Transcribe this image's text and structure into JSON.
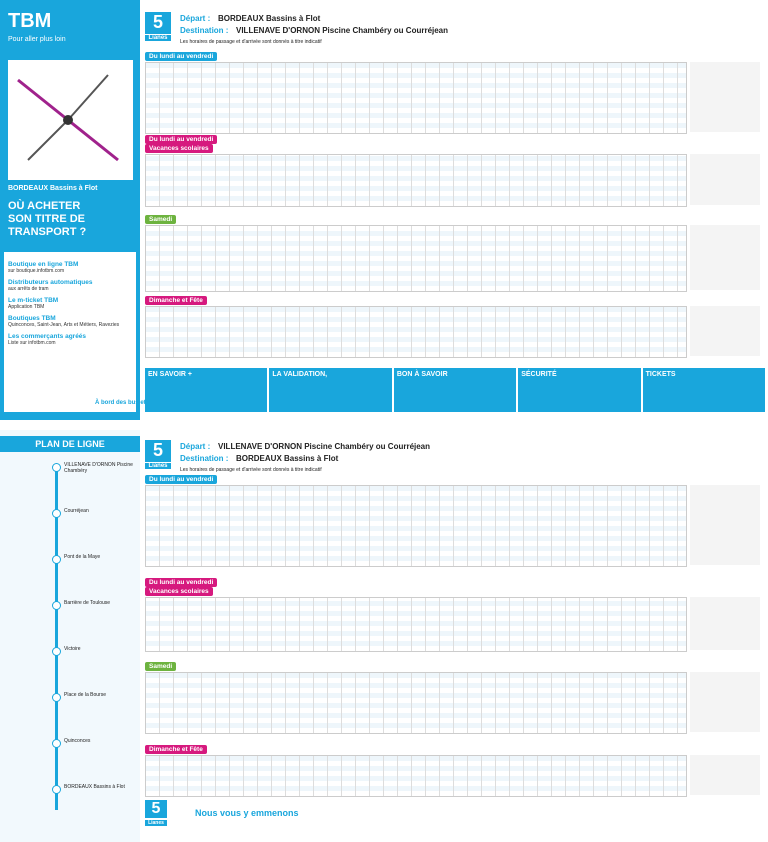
{
  "sidebar": {
    "brand": "TBM",
    "tagline": "Pour aller plus loin",
    "line_name": "BORDEAUX Bassins à Flot",
    "title": "OÙ ACHETER SON TITRE DE TRANSPORT ?",
    "items": [
      {
        "title": "Boutique en ligne TBM",
        "text": "sur boutique.infotbm.com"
      },
      {
        "title": "Distributeurs automatiques",
        "text": "aux arrêts de tram"
      },
      {
        "title": "Le m-ticket TBM",
        "text": "Application TBM"
      },
      {
        "title": "Boutiques TBM",
        "text": "Quinconces, Saint-Jean, Arts et Métiers, Ravezies"
      },
      {
        "title": "Les commerçants agréés",
        "text": "Liste sur infotbm.com"
      }
    ],
    "bottom_note": "À bord des bus et BatCub"
  },
  "timetables": [
    {
      "line": "5",
      "line_type": "Lianes",
      "depart_label": "Départ :",
      "depart": "BORDEAUX Bassins à Flot",
      "destination_label": "Destination :",
      "destination": "VILLENAVE D'ORNON Piscine Chambéry ou Courréjean",
      "note": "Les horaires de passage et d'arrivée sont donnés à titre indicatif",
      "sections": [
        {
          "title": "Du lundi au vendredi"
        },
        {
          "title": "Du lundi au vendredi",
          "subtitle": "Vacances scolaires"
        },
        {
          "title": "Samedi"
        },
        {
          "title": "Dimanche et Fête"
        }
      ]
    },
    {
      "line": "5",
      "line_type": "Lianes",
      "depart_label": "Départ :",
      "depart": "VILLENAVE D'ORNON Piscine Chambéry ou Courréjean",
      "destination_label": "Destination :",
      "destination": "BORDEAUX Bassins à Flot",
      "note": "Les horaires de passage et d'arrivée sont donnés à titre indicatif",
      "sections": [
        {
          "title": "Du lundi au vendredi"
        },
        {
          "title": "Du lundi au vendredi",
          "subtitle": "Vacances scolaires"
        },
        {
          "title": "Samedi"
        },
        {
          "title": "Dimanche et Fête"
        }
      ]
    }
  ],
  "infobar": [
    "EN SAVOIR +",
    "LA VALIDATION,",
    "BON À SAVOIR",
    "SÉCURITÉ",
    "TICKETS"
  ],
  "plan": {
    "title": "PLAN DE LIGNE",
    "stops": [
      "VILLENAVE D'ORNON Piscine Chambéry",
      "Courréjean",
      "Pont de la Maye",
      "Barrière de Toulouse",
      "Victoire",
      "Place de la Bourse",
      "Quinconces",
      "BORDEAUX Bassins à Flot"
    ]
  },
  "footer": {
    "title": "Nous vous y emmenons",
    "line": "5",
    "line_type": "Lianes"
  }
}
